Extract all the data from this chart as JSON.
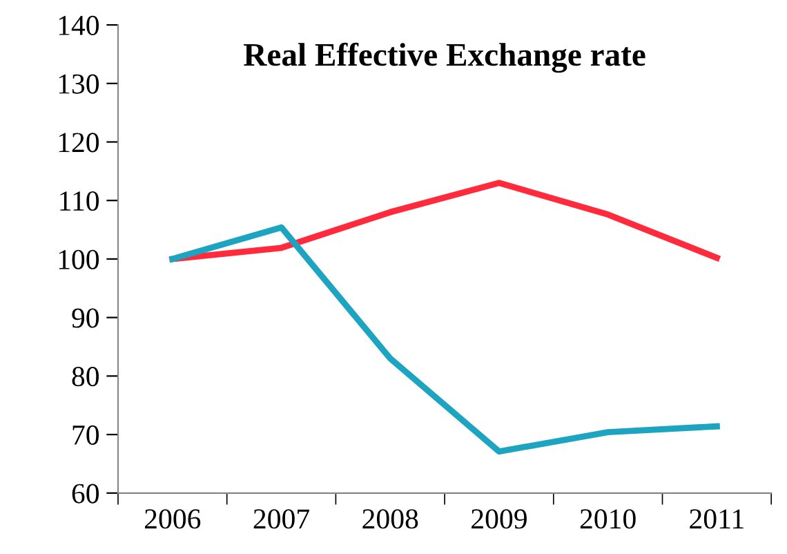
{
  "chart_data": {
    "type": "line",
    "title": "Real Effective Exchange rate",
    "categories": [
      "2006",
      "2007",
      "2008",
      "2009",
      "2010",
      "2011"
    ],
    "series": [
      {
        "color": "#ff2a3c",
        "values": [
          100,
          101.9,
          108,
          113,
          107.6,
          100.2
        ]
      },
      {
        "color": "#1ca4c0",
        "values": [
          100,
          105.4,
          83,
          67.1,
          70.4,
          71.4
        ]
      }
    ],
    "ylim": [
      60,
      140
    ],
    "yticks": [
      60,
      70,
      80,
      90,
      100,
      110,
      120,
      130,
      140
    ],
    "grid": false,
    "legend": false,
    "marker": "none",
    "line_style": "solid"
  }
}
